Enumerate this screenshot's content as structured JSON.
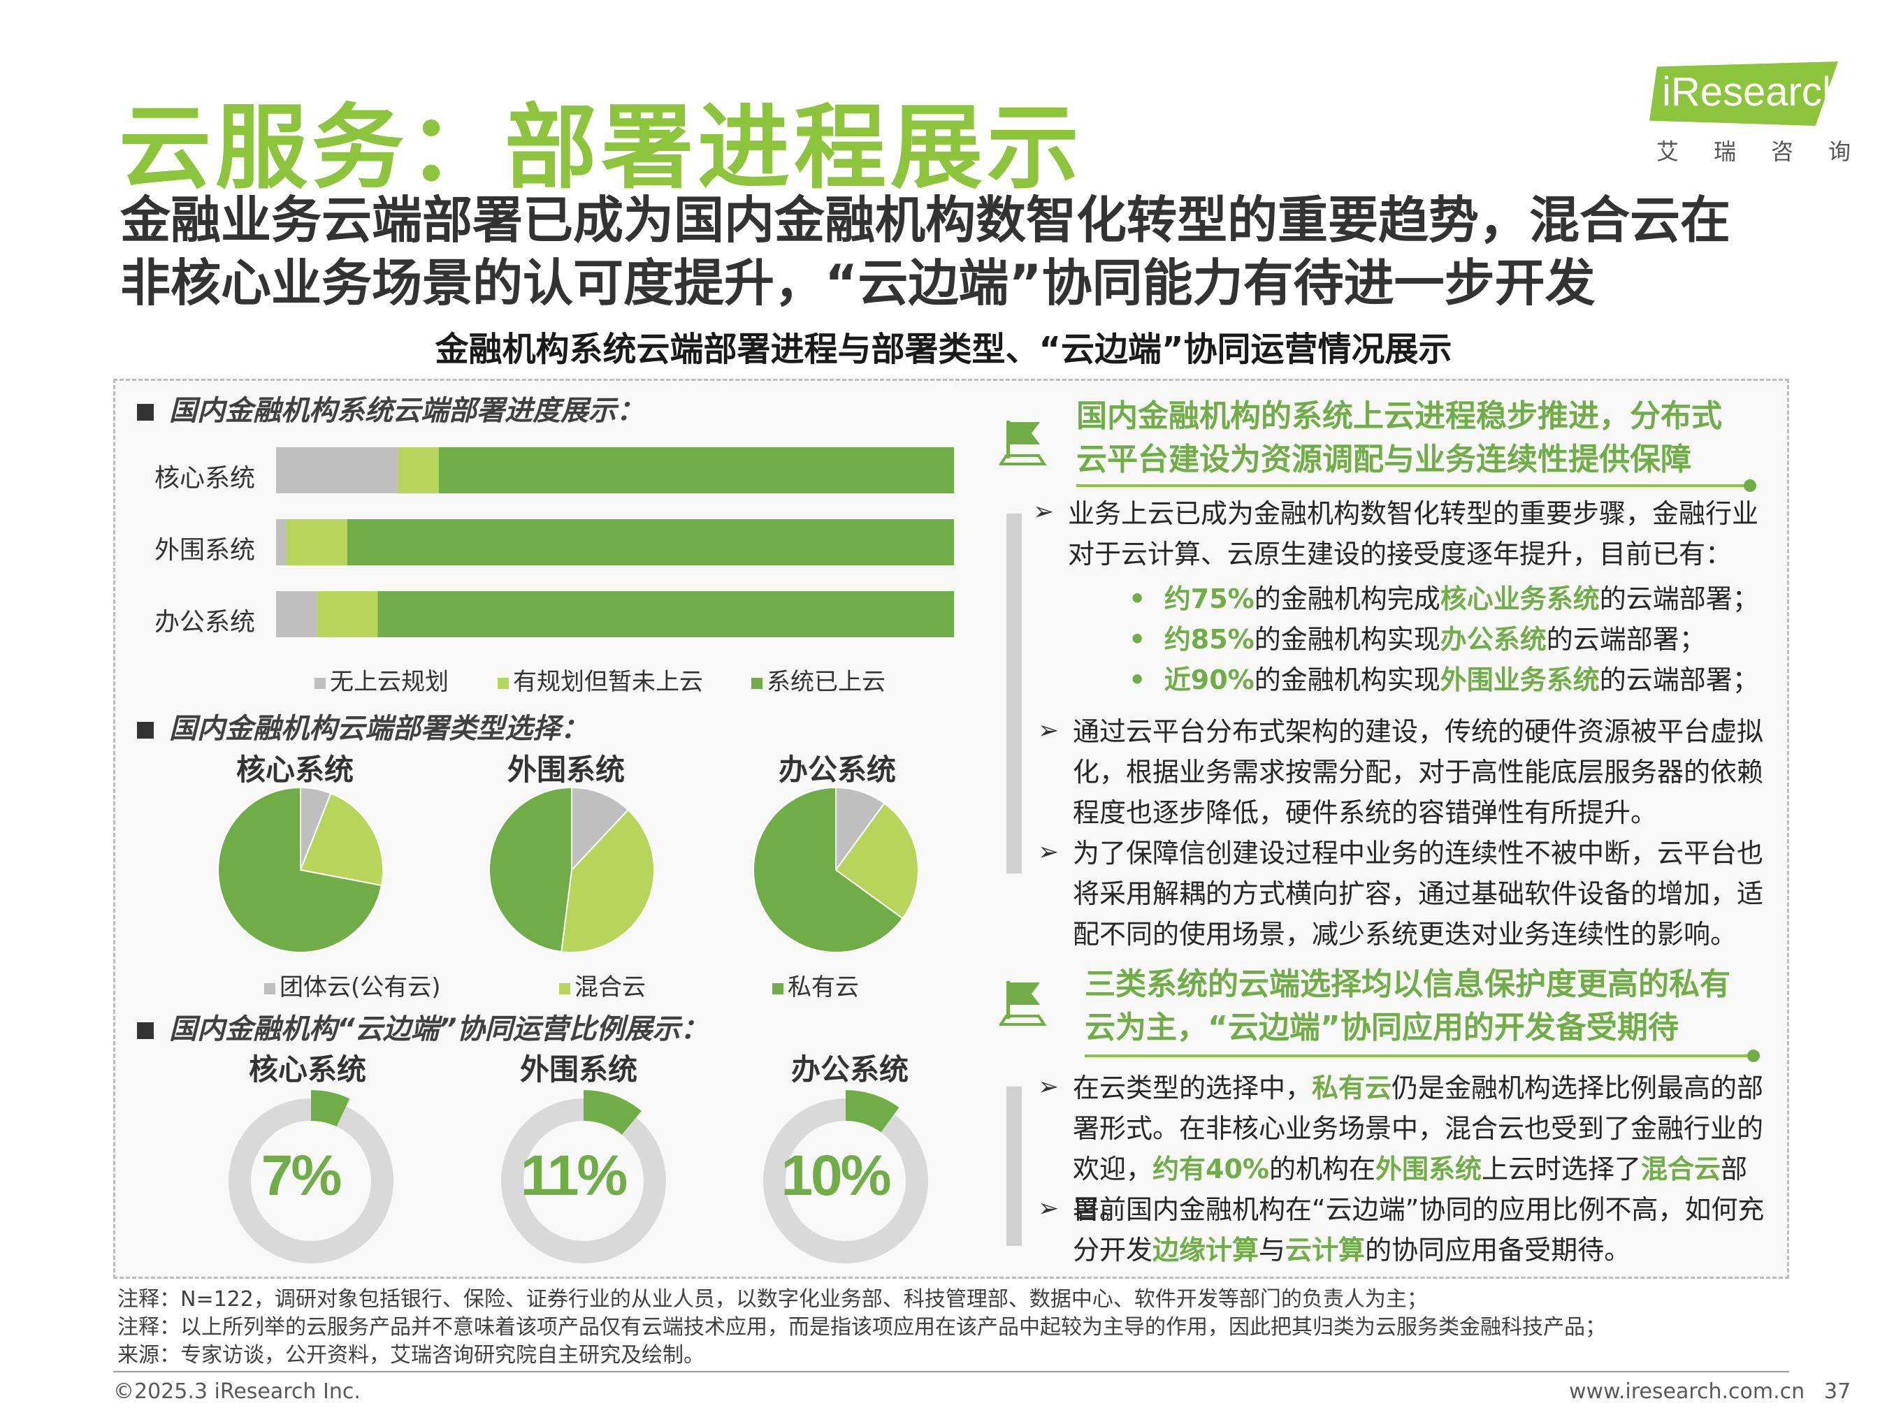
{
  "title": "云服务：部署进程展示",
  "subtitle": "金融业务云端部署已成为国内金融机构数智化转型的重要趋势，混合云在非核心业务场景的认可度提升，“云边端”协同能力有待进一步开发",
  "logo": {
    "brand": "iResearch",
    "cn": "艾瑞咨询"
  },
  "chart_heading": "金融机构系统云端部署进程与部署类型、“云边端”协同运营情况展示",
  "colors": {
    "gray": "#bfbfbf",
    "light_green": "#b7d55a",
    "green": "#70ad47",
    "accent": "#8cc43c"
  },
  "sections": {
    "s1": "国内金融机构系统云端部署进度展示：",
    "s2": "国内金融机构云端部署类型选择：",
    "s3": "国内金融机构“云边端”协同运营比例展示："
  },
  "chart_data": [
    {
      "type": "bar",
      "orientation": "horizontal-stacked-100",
      "categories": [
        "核心系统",
        "外围系统",
        "办公系统"
      ],
      "series": [
        {
          "name": "无上云规划",
          "values": [
            18,
            1.5,
            6
          ],
          "color": "#bfbfbf"
        },
        {
          "name": "有规划但暂未上云",
          "values": [
            6,
            9,
            9
          ],
          "color": "#b7d55a"
        },
        {
          "name": "系统已上云",
          "values": [
            76,
            89.5,
            85
          ],
          "color": "#70ad47"
        }
      ],
      "legend": "bottom"
    },
    {
      "type": "pie",
      "charts": [
        {
          "title": "核心系统",
          "values": [
            6,
            22,
            72
          ]
        },
        {
          "title": "外围系统",
          "values": [
            12,
            40,
            48
          ]
        },
        {
          "title": "办公系统",
          "values": [
            10,
            25,
            65
          ]
        }
      ],
      "series_names": [
        "团体云(公有云)",
        "混合云",
        "私有云"
      ],
      "colors": [
        "#bfbfbf",
        "#b7d55a",
        "#70ad47"
      ],
      "legend": "bottom"
    },
    {
      "type": "pie",
      "style": "donut-gauge",
      "charts": [
        {
          "title": "核心系统",
          "value": 7,
          "label": "7%"
        },
        {
          "title": "外围系统",
          "value": 11,
          "label": "11%"
        },
        {
          "title": "办公系统",
          "value": 10,
          "label": "10%"
        }
      ]
    }
  ],
  "right": {
    "head1": [
      "国内金融机构的系统上云进程稳步推进，分布式",
      "云平台建设为资源调配与业务连续性提供保障"
    ],
    "p1": "业务上云已成为金融机构数智化转型的重要步骤，金融行业对于云计算、云原生建设的接受度逐年提升，目前已有：",
    "b1": {
      "a": "约75%",
      "b": "的金融机构完成",
      "c": "核心业务系统",
      "d": "的云端部署；"
    },
    "b2": {
      "a": "约85%",
      "b": "的金融机构实现",
      "c": "办公系统",
      "d": "的云端部署；"
    },
    "b3": {
      "a": "近90%",
      "b": "的金融机构实现",
      "c": "外围业务系统",
      "d": "的云端部署；"
    },
    "p2": "通过云平台分布式架构的建设，传统的硬件资源被平台虚拟化，根据业务需求按需分配，对于高性能底层服务器的依赖程度也逐步降低，硬件系统的容错弹性有所提升。",
    "p3": "为了保障信创建设过程中业务的连续性不被中断，云平台也将采用解耦的方式横向扩容，通过基础软件设备的增加，适配不同的使用场景，减少系统更迭对业务连续性的影响。",
    "head2": [
      "三类系统的云端选择均以信息保护度更高的私有",
      "云为主，“云边端”协同应用的开发备受期待"
    ],
    "p4": {
      "a": "在云类型的选择中，",
      "b": "私有云",
      "c": "仍是金融机构选择比例最高的部署形式。在非核心业务场景中，混合云也受到了金融行业的欢迎，",
      "d": "约有40%",
      "e": "的机构在",
      "f": "外围系统",
      "g": "上云时选择了",
      "h": "混合云",
      "i": "部署。"
    },
    "p5": {
      "a": "目前国内金融机构在“云边端”协同的应用比例不高，如何充分开发",
      "b": "边缘计算",
      "c": "与",
      "d": "云计算",
      "e": "的协同应用备受期待。"
    }
  },
  "notes": [
    "注释：N=122，调研对象包括银行、保险、证券行业的从业人员，以数字化业务部、科技管理部、数据中心、软件开发等部门的负责人为主；",
    "注释：以上所列举的云服务产品并不意味着该项产品仅有云端技术应用，而是指该项应用在该产品中起较为主导的作用，因此把其归类为云服务类金融科技产品；",
    "来源：专家访谈，公开资料，艾瑞咨询研究院自主研究及绘制。"
  ],
  "footer": {
    "copyright": "©2025.3 iResearch Inc.",
    "url": "www.iresearch.com.cn",
    "page": "37"
  }
}
